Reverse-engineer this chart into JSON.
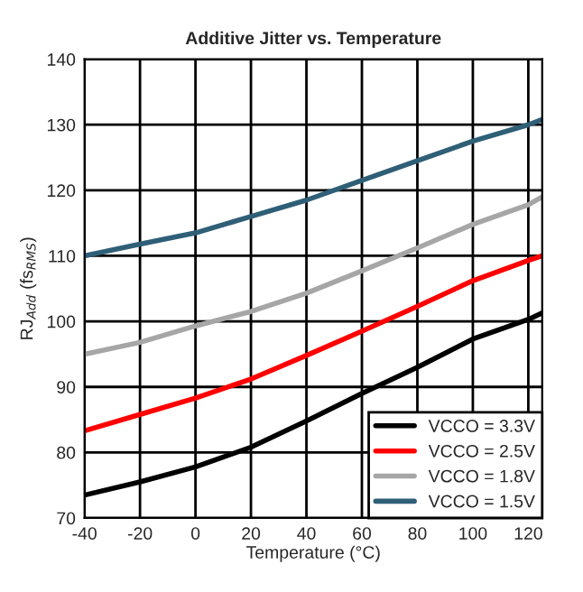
{
  "chart_data": {
    "type": "line",
    "title": "Additive Jitter vs. Temperature",
    "xlabel": "Temperature (°C)",
    "ylabel": "RJ$_{Add}$ (fs$_{RMS}$)",
    "x": [
      -40,
      -20,
      0,
      20,
      40,
      60,
      80,
      100,
      120,
      125
    ],
    "series": [
      {
        "name": "VCCO = 3.3V",
        "color": "#000000",
        "values": [
          73.5,
          75.5,
          77.8,
          80.8,
          84.8,
          89,
          93,
          97.3,
          100.3,
          101.3
        ]
      },
      {
        "name": "VCCO = 2.5V",
        "color": "#ff0000",
        "values": [
          83.3,
          85.8,
          88.3,
          91.2,
          94.8,
          98.5,
          102.3,
          106.2,
          109.3,
          110
        ]
      },
      {
        "name": "VCCO = 1.8V",
        "color": "#a6a6a6",
        "values": [
          95,
          96.8,
          99.3,
          101.5,
          104.3,
          107.7,
          111.2,
          114.8,
          117.8,
          119
        ]
      },
      {
        "name": "VCCO = 1.5V",
        "color": "#2f5f77",
        "values": [
          110,
          111.8,
          113.5,
          116,
          118.5,
          121.5,
          124.5,
          127.5,
          130,
          130.8
        ]
      }
    ],
    "xlim": [
      -40,
      125
    ],
    "xticks": [
      -40,
      -20,
      0,
      20,
      40,
      60,
      80,
      100,
      120
    ],
    "ylim": [
      70,
      140
    ],
    "yticks": [
      70,
      80,
      90,
      100,
      110,
      120,
      130,
      140
    ],
    "grid": true,
    "legend": "bottom right",
    "line_style": "solid"
  }
}
